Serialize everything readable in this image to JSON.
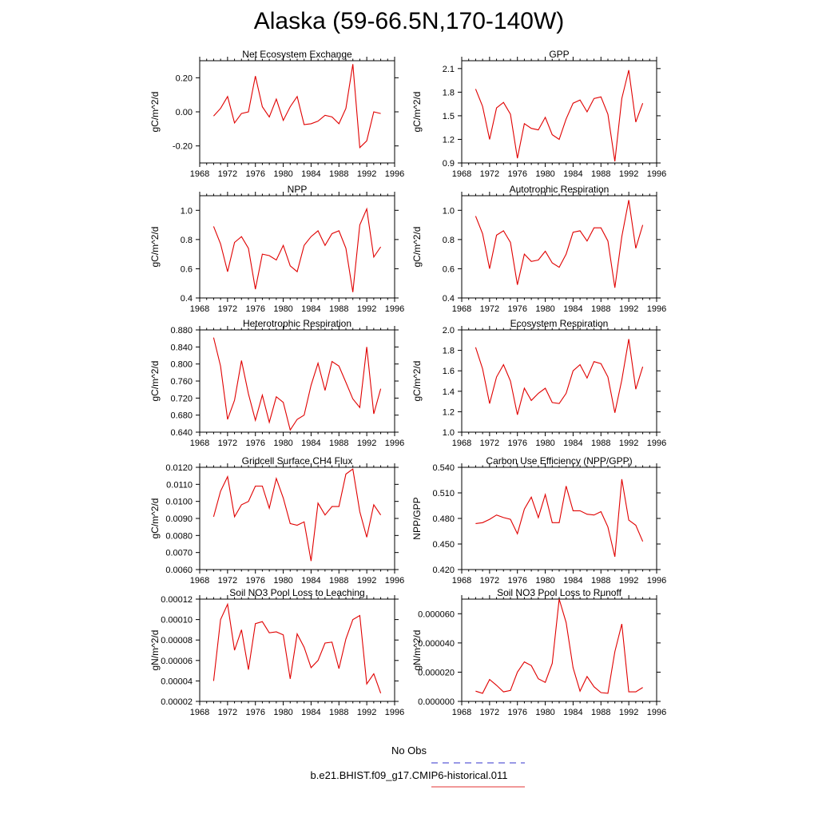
{
  "page_title": "Alaska (59-66.5N,170-140W)",
  "legend": {
    "items": [
      {
        "label": "No Obs",
        "color": "#3333cc",
        "dash": true
      },
      {
        "label": "b.e21.BHIST.f09_g17.CMIP6-historical.011",
        "color": "#e33333",
        "dash": false
      }
    ]
  },
  "chart_data": [
    {
      "type": "line",
      "title": "Net Ecosystem Exchange",
      "ylabel": "gC/m^2/d",
      "xlim": [
        1968,
        1996
      ],
      "ylim": [
        -0.3,
        0.3
      ],
      "xticks": [
        1968,
        1972,
        1976,
        1980,
        1984,
        1988,
        1992,
        1996
      ],
      "yticks": [
        -0.2,
        0.0,
        0.2
      ],
      "ytick_labels": [
        "-0.20",
        "0.00",
        "0.20"
      ],
      "x": [
        1970,
        1971,
        1972,
        1973,
        1974,
        1975,
        1976,
        1977,
        1978,
        1979,
        1980,
        1981,
        1982,
        1983,
        1984,
        1985,
        1986,
        1987,
        1988,
        1989,
        1990,
        1991,
        1992,
        1993,
        1994
      ],
      "series": [
        {
          "color": "#e00000",
          "values": [
            -0.025,
            0.02,
            0.09,
            -0.065,
            -0.01,
            0.0,
            0.21,
            0.03,
            -0.03,
            0.075,
            -0.05,
            0.03,
            0.09,
            -0.075,
            -0.07,
            -0.055,
            -0.02,
            -0.03,
            -0.07,
            0.02,
            0.28,
            -0.21,
            -0.17,
            0.0,
            -0.01
          ]
        }
      ]
    },
    {
      "type": "line",
      "title": "GPP",
      "ylabel": "gC/m^2/d",
      "xlim": [
        1968,
        1996
      ],
      "ylim": [
        0.9,
        2.2
      ],
      "xticks": [
        1968,
        1972,
        1976,
        1980,
        1984,
        1988,
        1992,
        1996
      ],
      "yticks": [
        0.9,
        1.2,
        1.5,
        1.8,
        2.1
      ],
      "ytick_labels": [
        "0.9",
        "1.2",
        "1.5",
        "1.8",
        "2.1"
      ],
      "x": [
        1970,
        1971,
        1972,
        1973,
        1974,
        1975,
        1976,
        1977,
        1978,
        1979,
        1980,
        1981,
        1982,
        1983,
        1984,
        1985,
        1986,
        1987,
        1988,
        1989,
        1990,
        1991,
        1992,
        1993,
        1994
      ],
      "series": [
        {
          "color": "#e00000",
          "values": [
            1.84,
            1.62,
            1.2,
            1.6,
            1.67,
            1.52,
            0.96,
            1.4,
            1.34,
            1.32,
            1.48,
            1.26,
            1.2,
            1.46,
            1.66,
            1.7,
            1.55,
            1.72,
            1.74,
            1.52,
            0.92,
            1.72,
            2.08,
            1.42,
            1.66
          ]
        }
      ]
    },
    {
      "type": "line",
      "title": "NPP",
      "ylabel": "gC/m^2/d",
      "xlim": [
        1968,
        1996
      ],
      "ylim": [
        0.4,
        1.1
      ],
      "xticks": [
        1968,
        1972,
        1976,
        1980,
        1984,
        1988,
        1992,
        1996
      ],
      "yticks": [
        0.4,
        0.6,
        0.8,
        1.0
      ],
      "ytick_labels": [
        "0.4",
        "0.6",
        "0.8",
        "1.0"
      ],
      "x": [
        1970,
        1971,
        1972,
        1973,
        1974,
        1975,
        1976,
        1977,
        1978,
        1979,
        1980,
        1981,
        1982,
        1983,
        1984,
        1985,
        1986,
        1987,
        1988,
        1989,
        1990,
        1991,
        1992,
        1993,
        1994
      ],
      "series": [
        {
          "color": "#e00000",
          "values": [
            0.89,
            0.77,
            0.58,
            0.78,
            0.82,
            0.74,
            0.46,
            0.7,
            0.69,
            0.66,
            0.76,
            0.62,
            0.58,
            0.76,
            0.82,
            0.86,
            0.76,
            0.84,
            0.86,
            0.74,
            0.44,
            0.9,
            1.01,
            0.68,
            0.75
          ]
        }
      ]
    },
    {
      "type": "line",
      "title": "Autotrophic Respiration",
      "ylabel": "gC/m^2/d",
      "xlim": [
        1968,
        1996
      ],
      "ylim": [
        0.4,
        1.1
      ],
      "xticks": [
        1968,
        1972,
        1976,
        1980,
        1984,
        1988,
        1992,
        1996
      ],
      "yticks": [
        0.4,
        0.6,
        0.8,
        1.0
      ],
      "ytick_labels": [
        "0.4",
        "0.6",
        "0.8",
        "1.0"
      ],
      "x": [
        1970,
        1971,
        1972,
        1973,
        1974,
        1975,
        1976,
        1977,
        1978,
        1979,
        1980,
        1981,
        1982,
        1983,
        1984,
        1985,
        1986,
        1987,
        1988,
        1989,
        1990,
        1991,
        1992,
        1993,
        1994
      ],
      "series": [
        {
          "color": "#e00000",
          "values": [
            0.96,
            0.84,
            0.6,
            0.83,
            0.86,
            0.78,
            0.49,
            0.7,
            0.65,
            0.66,
            0.72,
            0.64,
            0.61,
            0.7,
            0.85,
            0.86,
            0.79,
            0.88,
            0.88,
            0.79,
            0.47,
            0.82,
            1.07,
            0.74,
            0.9
          ]
        }
      ]
    },
    {
      "type": "line",
      "title": "Heterotrophic Respiration",
      "ylabel": "gC/m^2/d",
      "xlim": [
        1968,
        1996
      ],
      "ylim": [
        0.64,
        0.88
      ],
      "xticks": [
        1968,
        1972,
        1976,
        1980,
        1984,
        1988,
        1992,
        1996
      ],
      "yticks": [
        0.64,
        0.68,
        0.72,
        0.76,
        0.8,
        0.84,
        0.88
      ],
      "ytick_labels": [
        "0.640",
        "0.680",
        "0.720",
        "0.760",
        "0.800",
        "0.840",
        "0.880"
      ],
      "x": [
        1970,
        1971,
        1972,
        1973,
        1974,
        1975,
        1976,
        1977,
        1978,
        1979,
        1980,
        1981,
        1982,
        1983,
        1984,
        1985,
        1986,
        1987,
        1988,
        1989,
        1990,
        1991,
        1992,
        1993,
        1994
      ],
      "series": [
        {
          "color": "#e00000",
          "values": [
            0.862,
            0.795,
            0.67,
            0.715,
            0.808,
            0.73,
            0.668,
            0.727,
            0.663,
            0.723,
            0.71,
            0.645,
            0.67,
            0.68,
            0.75,
            0.802,
            0.738,
            0.806,
            0.795,
            0.757,
            0.718,
            0.698,
            0.84,
            0.683,
            0.742
          ]
        }
      ]
    },
    {
      "type": "line",
      "title": "Ecosystem Respiration",
      "ylabel": "gC/m^2/d",
      "xlim": [
        1968,
        1996
      ],
      "ylim": [
        1.0,
        2.0
      ],
      "xticks": [
        1968,
        1972,
        1976,
        1980,
        1984,
        1988,
        1992,
        1996
      ],
      "yticks": [
        1.0,
        1.2,
        1.4,
        1.6,
        1.8,
        2.0
      ],
      "ytick_labels": [
        "1.0",
        "1.2",
        "1.4",
        "1.6",
        "1.8",
        "2.0"
      ],
      "x": [
        1970,
        1971,
        1972,
        1973,
        1974,
        1975,
        1976,
        1977,
        1978,
        1979,
        1980,
        1981,
        1982,
        1983,
        1984,
        1985,
        1986,
        1987,
        1988,
        1989,
        1990,
        1991,
        1992,
        1993,
        1994
      ],
      "series": [
        {
          "color": "#e00000",
          "values": [
            1.83,
            1.62,
            1.28,
            1.54,
            1.66,
            1.5,
            1.17,
            1.43,
            1.31,
            1.38,
            1.43,
            1.29,
            1.28,
            1.38,
            1.6,
            1.66,
            1.53,
            1.69,
            1.67,
            1.54,
            1.19,
            1.51,
            1.91,
            1.42,
            1.64
          ]
        }
      ]
    },
    {
      "type": "line",
      "title": "Gridcell Surface CH4 Flux",
      "ylabel": "gC/m^2/d",
      "xlim": [
        1968,
        1996
      ],
      "ylim": [
        0.006,
        0.012
      ],
      "xticks": [
        1968,
        1972,
        1976,
        1980,
        1984,
        1988,
        1992,
        1996
      ],
      "yticks": [
        0.006,
        0.007,
        0.008,
        0.009,
        0.01,
        0.011,
        0.012
      ],
      "ytick_labels": [
        "0.0060",
        "0.0070",
        "0.0080",
        "0.0090",
        "0.0100",
        "0.0110",
        "0.0120"
      ],
      "x": [
        1970,
        1971,
        1972,
        1973,
        1974,
        1975,
        1976,
        1977,
        1978,
        1979,
        1980,
        1981,
        1982,
        1983,
        1984,
        1985,
        1986,
        1987,
        1988,
        1989,
        1990,
        1991,
        1992,
        1993,
        1994
      ],
      "series": [
        {
          "color": "#e00000",
          "values": [
            0.0091,
            0.0106,
            0.01145,
            0.0091,
            0.0098,
            0.01,
            0.0109,
            0.0109,
            0.0096,
            0.01135,
            0.0102,
            0.0087,
            0.0086,
            0.0088,
            0.0065,
            0.0099,
            0.0092,
            0.0097,
            0.0097,
            0.0116,
            0.0119,
            0.0094,
            0.0079,
            0.0098,
            0.0092
          ]
        }
      ]
    },
    {
      "type": "line",
      "title": "Carbon Use Efficiency (NPP/GPP)",
      "ylabel": "NPP/GPP",
      "xlim": [
        1968,
        1996
      ],
      "ylim": [
        0.42,
        0.54
      ],
      "xticks": [
        1968,
        1972,
        1976,
        1980,
        1984,
        1988,
        1992,
        1996
      ],
      "yticks": [
        0.42,
        0.45,
        0.48,
        0.51,
        0.54
      ],
      "ytick_labels": [
        "0.420",
        "0.450",
        "0.480",
        "0.510",
        "0.540"
      ],
      "x": [
        1970,
        1971,
        1972,
        1973,
        1974,
        1975,
        1976,
        1977,
        1978,
        1979,
        1980,
        1981,
        1982,
        1983,
        1984,
        1985,
        1986,
        1987,
        1988,
        1989,
        1990,
        1991,
        1992,
        1993,
        1994
      ],
      "series": [
        {
          "color": "#e00000",
          "values": [
            0.474,
            0.475,
            0.479,
            0.484,
            0.481,
            0.479,
            0.462,
            0.491,
            0.505,
            0.481,
            0.508,
            0.475,
            0.475,
            0.518,
            0.489,
            0.489,
            0.485,
            0.484,
            0.488,
            0.47,
            0.435,
            0.526,
            0.478,
            0.472,
            0.453
          ]
        }
      ]
    },
    {
      "type": "line",
      "title": "Soil NO3 Pool Loss to Leaching",
      "ylabel": "gN/m^2/d",
      "xlim": [
        1968,
        1996
      ],
      "ylim": [
        2e-05,
        0.00012
      ],
      "xticks": [
        1968,
        1972,
        1976,
        1980,
        1984,
        1988,
        1992,
        1996
      ],
      "yticks": [
        2e-05,
        4e-05,
        6e-05,
        8e-05,
        0.0001,
        0.00012
      ],
      "ytick_labels": [
        "0.00002",
        "0.00004",
        "0.00006",
        "0.00008",
        "0.00010",
        "0.00012"
      ],
      "x": [
        1970,
        1971,
        1972,
        1973,
        1974,
        1975,
        1976,
        1977,
        1978,
        1979,
        1980,
        1981,
        1982,
        1983,
        1984,
        1985,
        1986,
        1987,
        1988,
        1989,
        1990,
        1991,
        1992,
        1993,
        1994
      ],
      "series": [
        {
          "color": "#e00000",
          "values": [
            4e-05,
            0.0001,
            0.000115,
            7e-05,
            9e-05,
            5.1e-05,
            9.6e-05,
            9.8e-05,
            8.7e-05,
            8.8e-05,
            8.5e-05,
            4.2e-05,
            8.6e-05,
            7.3e-05,
            5.3e-05,
            6e-05,
            7.7e-05,
            7.8e-05,
            5.2e-05,
            8.1e-05,
            0.0001,
            0.000104,
            3.7e-05,
            4.7e-05,
            2.8e-05
          ]
        }
      ]
    },
    {
      "type": "line",
      "title": "Soil NO3 Pool Loss to Runoff",
      "ylabel": "gN/m^2/d",
      "xlim": [
        1968,
        1996
      ],
      "ylim": [
        0.0,
        7e-05
      ],
      "xticks": [
        1968,
        1972,
        1976,
        1980,
        1984,
        1988,
        1992,
        1996
      ],
      "yticks": [
        0.0,
        2e-05,
        4e-05,
        6e-05
      ],
      "ytick_labels": [
        "0.000000",
        "0.000020",
        "0.000040",
        "0.000060"
      ],
      "x": [
        1970,
        1971,
        1972,
        1973,
        1974,
        1975,
        1976,
        1977,
        1978,
        1979,
        1980,
        1981,
        1982,
        1983,
        1984,
        1985,
        1986,
        1987,
        1988,
        1989,
        1990,
        1991,
        1992,
        1993,
        1994
      ],
      "series": [
        {
          "color": "#e00000",
          "values": [
            7e-06,
            5.5e-06,
            1.5e-05,
            1.1e-05,
            6.5e-06,
            7.5e-06,
            2e-05,
            2.7e-05,
            2.45e-05,
            1.55e-05,
            1.3e-05,
            2.6e-05,
            7e-05,
            5.4e-05,
            2.3e-05,
            7e-06,
            1.7e-05,
            1e-05,
            6e-06,
            5.5e-06,
            3.4e-05,
            5.3e-05,
            6.5e-06,
            6.5e-06,
            9.5e-06
          ]
        }
      ]
    }
  ]
}
